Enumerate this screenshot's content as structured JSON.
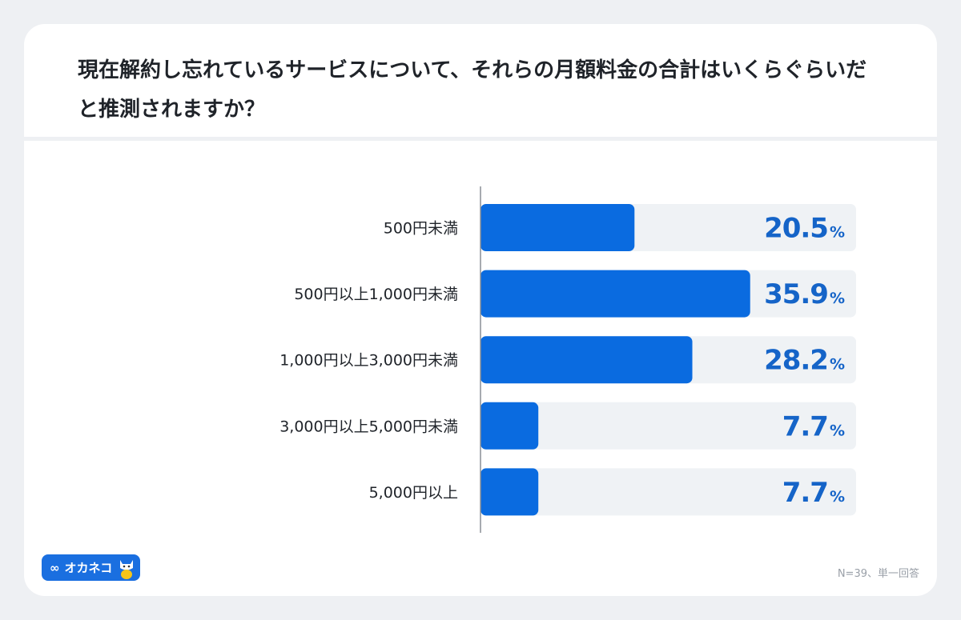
{
  "header": {
    "title": "現在解約し忘れているサービスについて、それらの月額料金の合計はいくらぐらいだと推測されますか？"
  },
  "chart_data": {
    "type": "bar",
    "orientation": "horizontal",
    "categories": [
      "500円未満",
      "500円以上1,000円未満",
      "1,000円以上3,000円未満",
      "3,000円以上5,000円未満",
      "5,000円以上"
    ],
    "values": [
      20.5,
      35.9,
      28.2,
      7.7,
      7.7
    ],
    "value_labels": [
      "20.5",
      "35.9",
      "28.2",
      "7.7",
      "7.7"
    ],
    "unit": "%",
    "xlim": [
      0,
      50
    ],
    "grid": false,
    "colors": {
      "bar": "#0a6be0",
      "track": "#eff2f5",
      "label": "#1564c8"
    }
  },
  "footer": {
    "note": "N=39、単一回答",
    "logo_text": "オカネコ",
    "logo_icon": "infinity-icon"
  }
}
